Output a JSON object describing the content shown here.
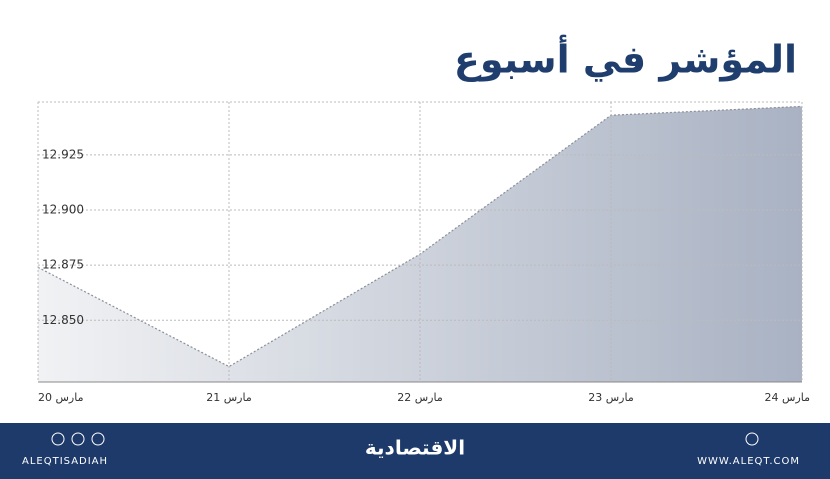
{
  "chart_data": {
    "type": "area",
    "title": "المؤشر في أسبوع",
    "categories": [
      "20 مارس",
      "21 مارس",
      "22 مارس",
      "23 مارس",
      "24 مارس"
    ],
    "values": [
      12874,
      12829,
      12880,
      12943,
      12947
    ],
    "ylim": [
      12822,
      12949
    ],
    "yticks": [
      {
        "value": 12850,
        "label": "12.850"
      },
      {
        "value": 12875,
        "label": "12.875"
      },
      {
        "value": 12900,
        "label": "12.900"
      },
      {
        "value": 12925,
        "label": "12.925"
      }
    ],
    "grid": true,
    "color": "#a9b2c3"
  },
  "footer": {
    "left": "ALEQTISADIAH",
    "center": "الاقتصادية",
    "right": "WWW.ALEQT.COM"
  }
}
